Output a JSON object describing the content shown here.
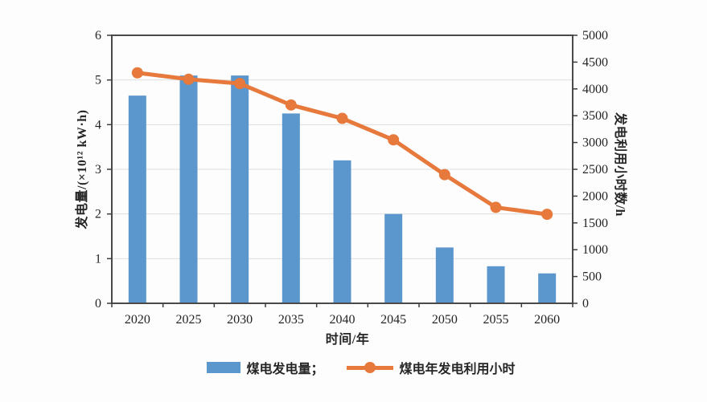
{
  "figure": {
    "background": "#fdfdfd",
    "plot_border_color": "#4a4a4a",
    "gridline_color": "#dedede",
    "tick_color": "#3c3c3c",
    "text_color": "#262626"
  },
  "chart_data": {
    "type": "bar+line",
    "categories": [
      "2020",
      "2025",
      "2030",
      "2035",
      "2040",
      "2045",
      "2050",
      "2055",
      "2060"
    ],
    "series": [
      {
        "name": "煤电发电量",
        "legend_label": "煤电发电量；",
        "type": "bar",
        "axis": "left",
        "color": "#5b96cc",
        "values": [
          4.65,
          5.1,
          5.1,
          4.25,
          3.2,
          2.0,
          1.25,
          0.83,
          0.67
        ]
      },
      {
        "name": "煤电年发电利用小时",
        "legend_label": "煤电年发电利用小时",
        "type": "line",
        "axis": "right",
        "color": "#e6793b",
        "values": [
          4300,
          4180,
          4100,
          3700,
          3450,
          3050,
          2400,
          1790,
          1660
        ]
      }
    ],
    "xlabel": "时间/年",
    "ylabel": "发电量/(×10¹² kW·h)",
    "y2label": "发电利用小时数/h",
    "ylim": [
      0,
      6
    ],
    "y_step": 1,
    "y2lim": [
      0,
      5000
    ],
    "y2_step": 500,
    "left_ticks": [
      "0",
      "1",
      "2",
      "3",
      "4",
      "5",
      "6"
    ],
    "right_ticks": [
      "0",
      "500",
      "1000",
      "1500",
      "2000",
      "2500",
      "3000",
      "3500",
      "4000",
      "4500",
      "5000"
    ],
    "grid": "horizontal",
    "legend_position": "bottom"
  }
}
